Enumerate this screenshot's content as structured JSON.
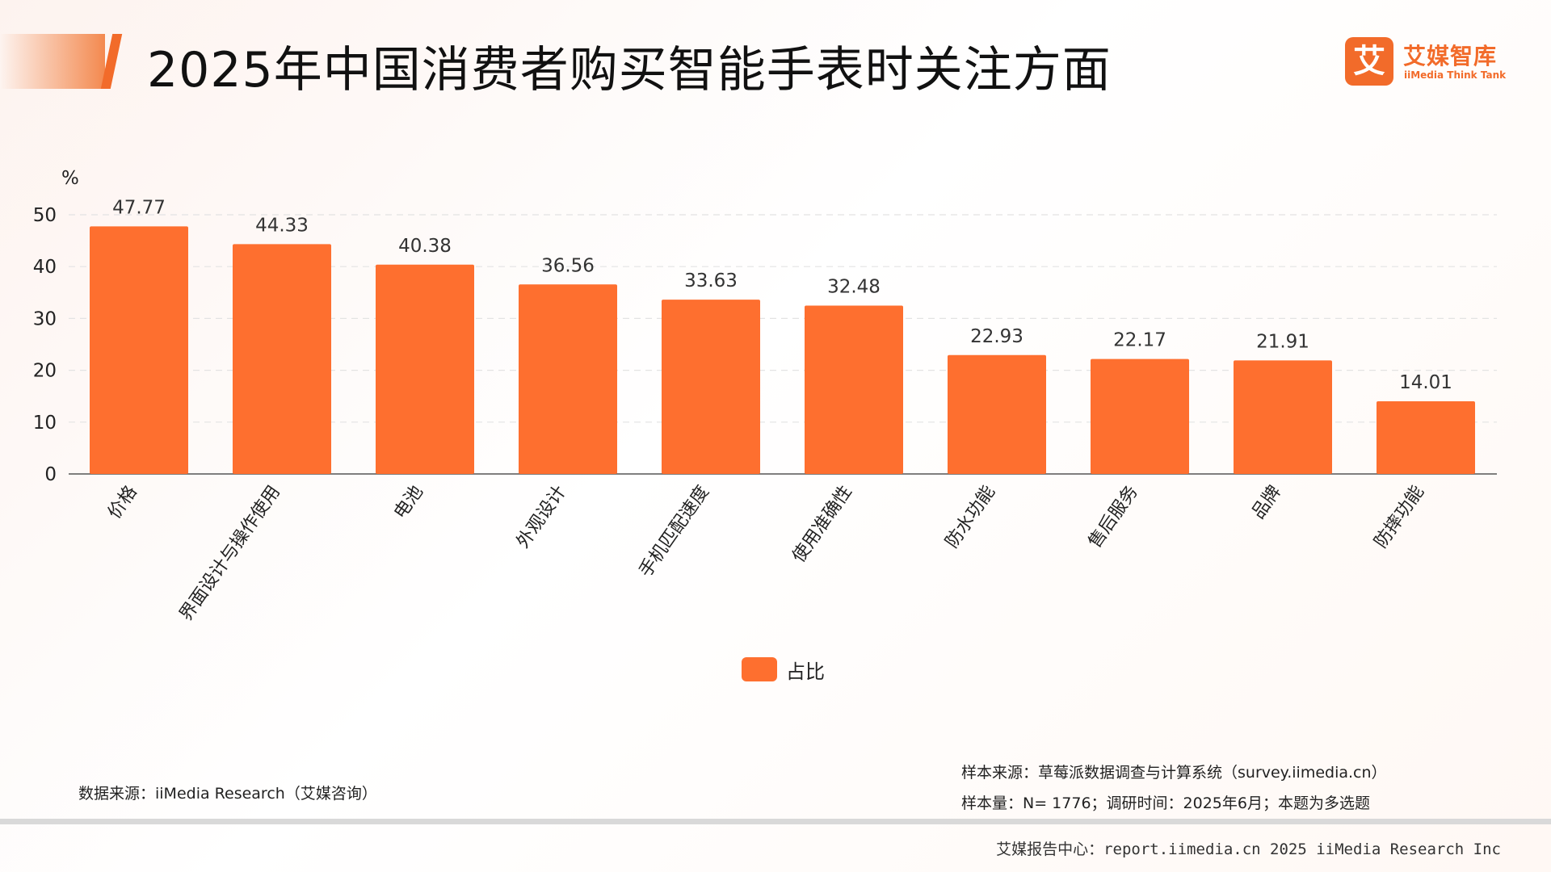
{
  "header": {
    "title": "2025年中国消费者购买智能手表时关注方面",
    "logo_mark": "艾",
    "logo_cn": "艾媒智库",
    "logo_en": "iiMedia Think Tank"
  },
  "colors": {
    "accent": "#f26b2a",
    "bar": "#fe6f2f",
    "grid": "#e3e3e3"
  },
  "chart_data": {
    "type": "bar",
    "ylabel": "%",
    "ylim": [
      0,
      50
    ],
    "yticks": [
      0,
      10,
      20,
      30,
      40,
      50
    ],
    "grid": true,
    "legend": "bottom-center",
    "categories": [
      "价格",
      "界面设计与操作使用",
      "电池",
      "外观设计",
      "手机匹配速度",
      "使用准确性",
      "防水功能",
      "售后服务",
      "品牌",
      "防摔功能"
    ],
    "series": [
      {
        "name": "占比",
        "values": [
          47.77,
          44.33,
          40.38,
          36.56,
          33.63,
          32.48,
          22.93,
          22.17,
          21.91,
          14.01
        ]
      }
    ]
  },
  "footer": {
    "data_source": "数据来源：iiMedia Research（艾媒咨询）",
    "sample_source": "样本来源：草莓派数据调查与计算系统（survey.iimedia.cn）",
    "sample_size": "样本量：N= 1776；调研时间：2025年6月；本题为多选题",
    "copyright": "艾媒报告中心：report.iimedia.cn   2025 iiMedia Research Inc"
  }
}
